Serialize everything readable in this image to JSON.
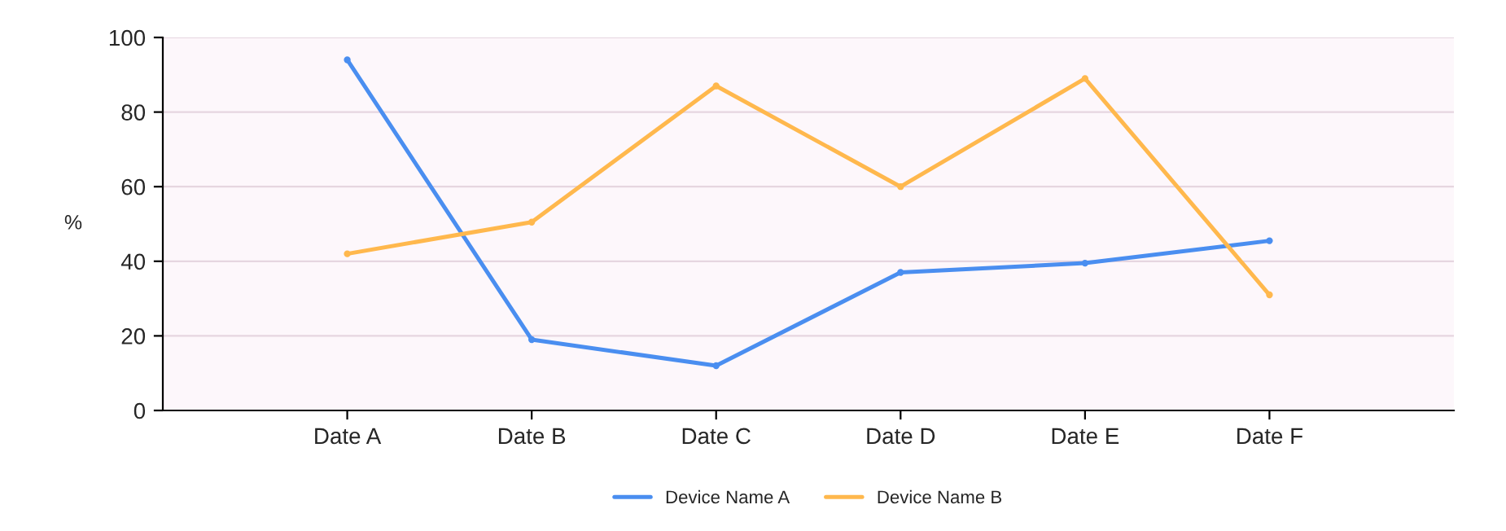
{
  "chart_data": {
    "type": "line",
    "ylabel": "%",
    "categories": [
      "Date A",
      "Date B",
      "Date C",
      "Date D",
      "Date E",
      "Date F"
    ],
    "series": [
      {
        "name": "Device Name A",
        "color": "#4a8ef0",
        "values": [
          94,
          19,
          12,
          37,
          39.5,
          45.5
        ]
      },
      {
        "name": "Device Name B",
        "color": "#ffb84d",
        "values": [
          42,
          50.5,
          87,
          60,
          89,
          31
        ]
      }
    ],
    "ylim": [
      0,
      100
    ],
    "yticks": [
      0,
      20,
      40,
      60,
      80,
      100
    ],
    "grid": "y",
    "legend": "bottom",
    "marker": "circle",
    "line_style": "solid"
  }
}
